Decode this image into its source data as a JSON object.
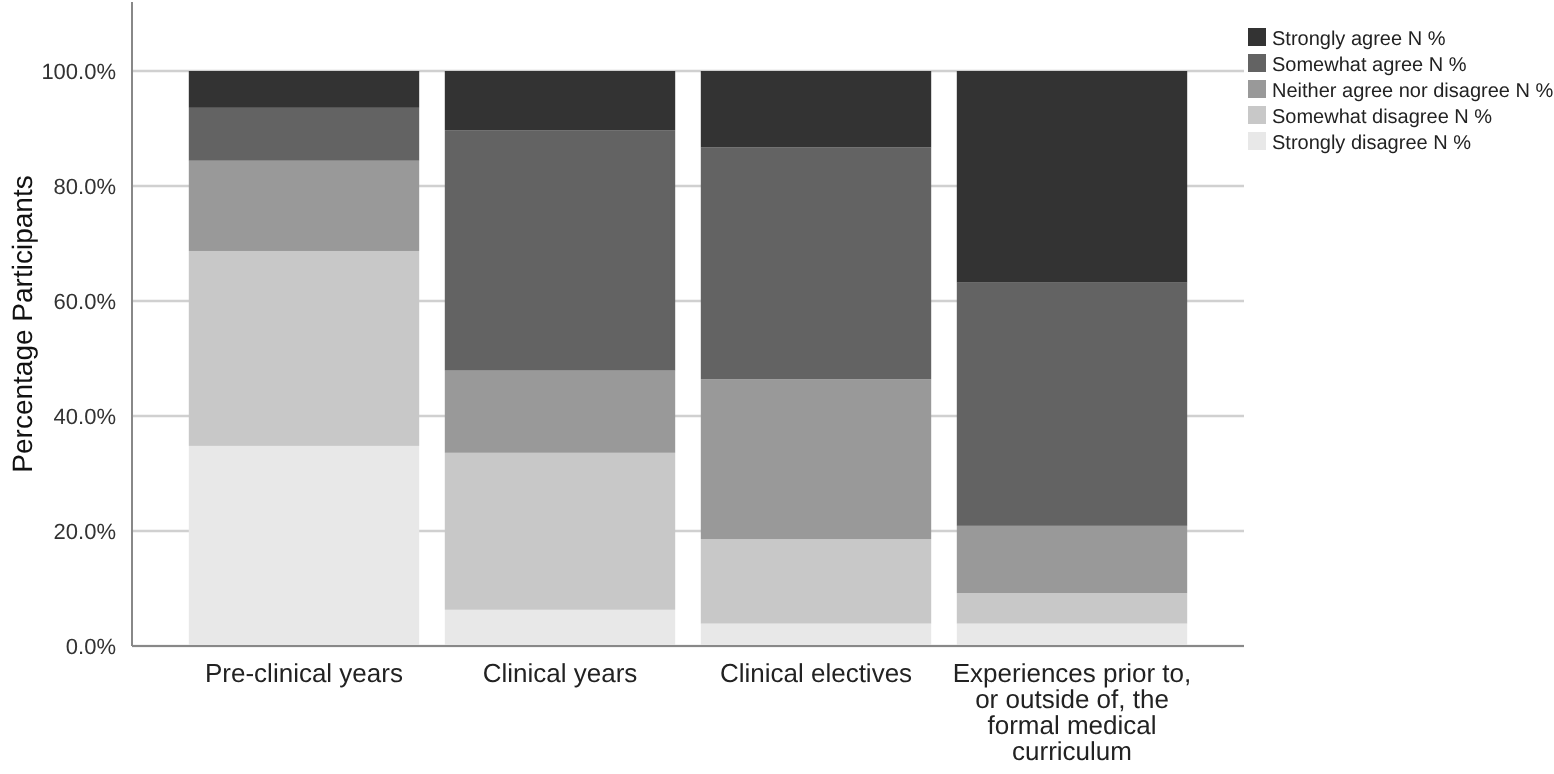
{
  "chart_data": {
    "type": "bar",
    "stacked": true,
    "ylabel": "Percentage Participants",
    "categories": [
      "Pre-clinical years",
      "Clinical years",
      "Clinical electives",
      "Experiences prior to, or outside of, the formal medical curriculum"
    ],
    "series": [
      {
        "name": "Strongly disagree N %",
        "color": "#e8e8e8",
        "values": [
          34.8,
          6.3,
          3.9,
          3.9
        ]
      },
      {
        "name": "Somewhat disagree N %",
        "color": "#c8c8c8",
        "values": [
          33.9,
          27.3,
          14.7,
          5.3
        ]
      },
      {
        "name": "Neither agree nor disagree N %",
        "color": "#999999",
        "values": [
          15.7,
          14.3,
          27.8,
          11.7
        ]
      },
      {
        "name": "Somewhat agree N %",
        "color": "#636363",
        "values": [
          9.2,
          41.8,
          40.3,
          42.3
        ]
      },
      {
        "name": "Strongly agree N %",
        "color": "#333333",
        "values": [
          6.4,
          10.3,
          13.3,
          36.8
        ]
      }
    ],
    "ylim": [
      0,
      112
    ],
    "yticks": [
      {
        "value": 0,
        "label": "0.0%"
      },
      {
        "value": 20,
        "label": "20.0%"
      },
      {
        "value": 40,
        "label": "40.0%"
      },
      {
        "value": 60,
        "label": "60.0%"
      },
      {
        "value": 80,
        "label": "80.0%"
      },
      {
        "value": 100,
        "label": "100.0%"
      }
    ],
    "grid": "y",
    "legend": "top right"
  }
}
